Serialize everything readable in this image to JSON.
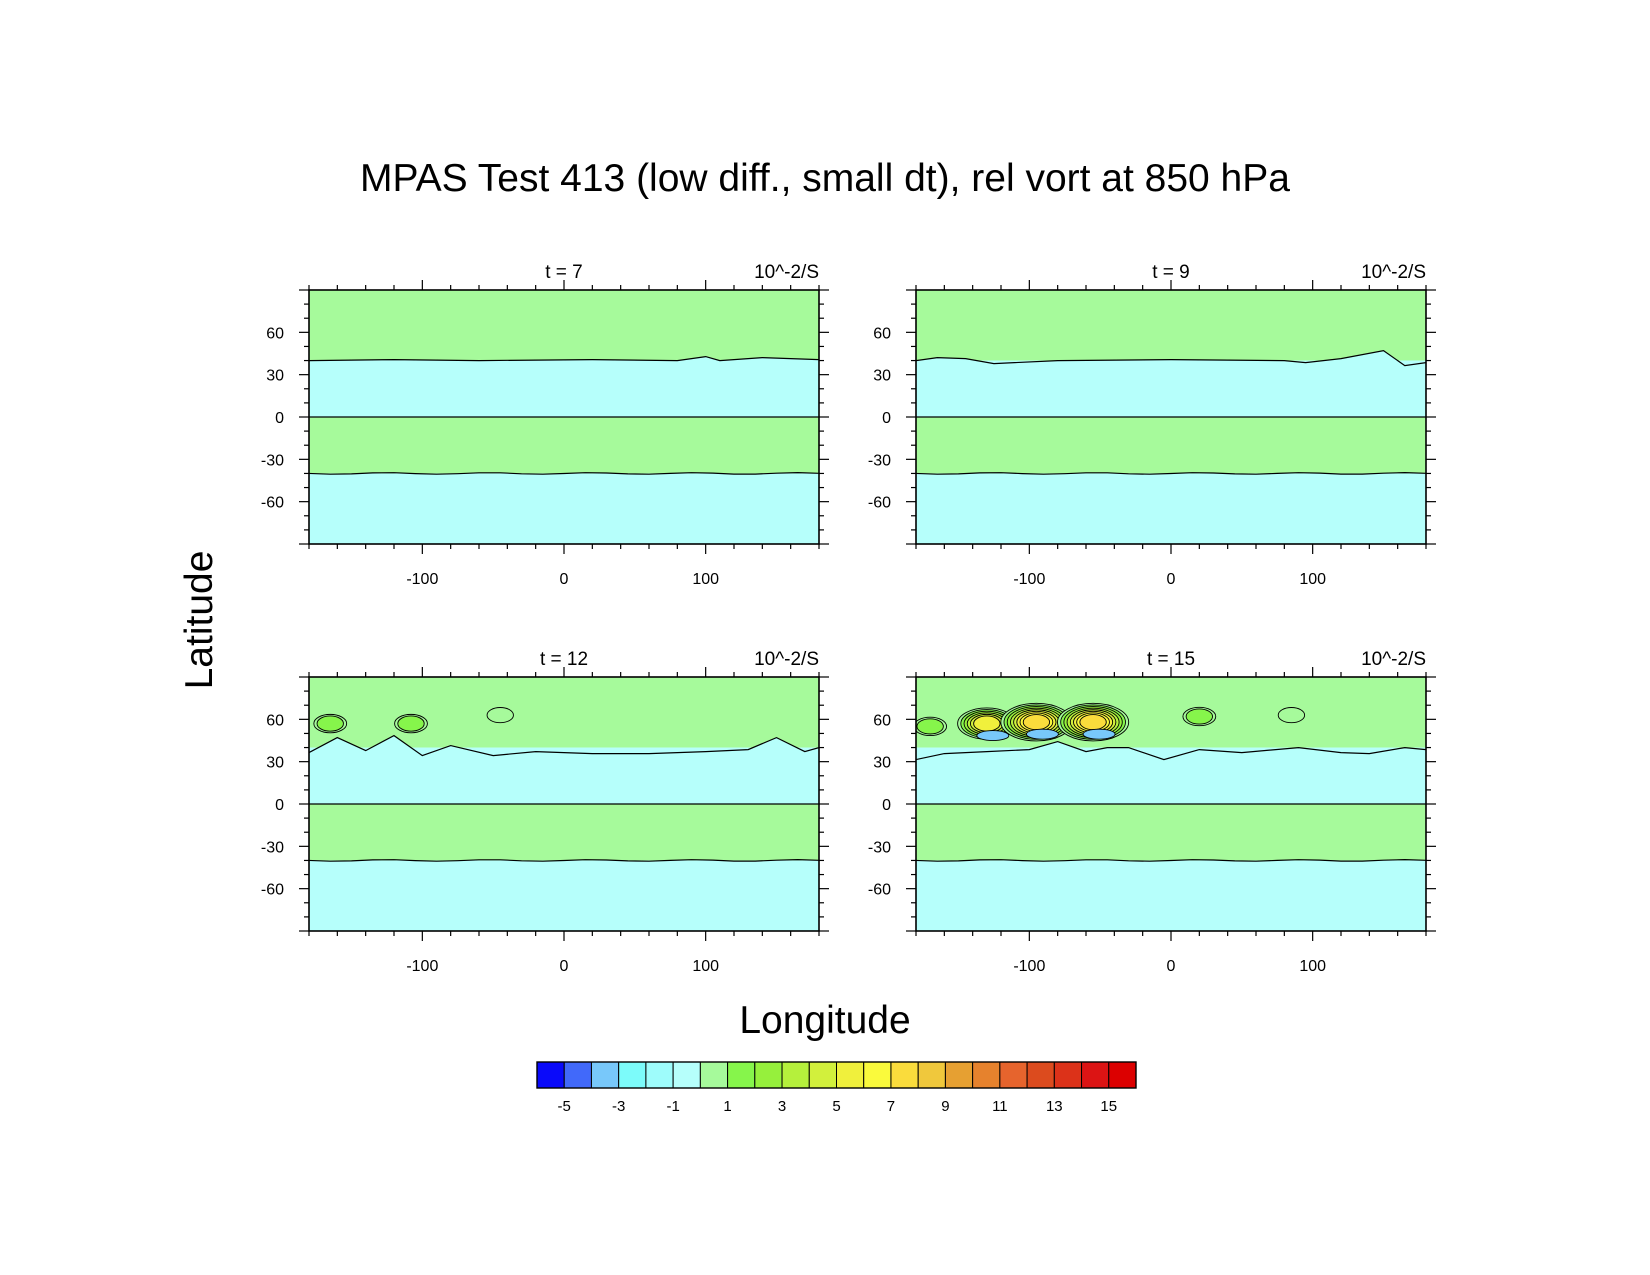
{
  "figure": {
    "title": "MPAS Test 413 (low diff., small dt), rel vort at 850 hPa",
    "xlabel": "Longitude",
    "ylabel": "Latitude"
  },
  "chart_data": [
    {
      "type": "heatmap",
      "panel": "t = 7",
      "units": "10^-2/S",
      "xlim": [
        -180,
        180
      ],
      "ylim": [
        -90,
        90
      ],
      "x_ticks": [
        "-100",
        "0",
        "100"
      ],
      "y_ticks": [
        "60",
        "30",
        "0",
        "-30",
        "-60"
      ],
      "bands": [
        {
          "from": 90,
          "to": 40,
          "level": "1",
          "color": "#a6fa9b"
        },
        {
          "from": 40,
          "to": 0,
          "level": "-1",
          "color": "#b6fffb"
        },
        {
          "from": 0,
          "to": -40,
          "level": "1",
          "color": "#a6fa9b"
        },
        {
          "from": -40,
          "to": -90,
          "level": "-1",
          "color": "#b6fffb"
        }
      ],
      "contour_lat": [
        40,
        0,
        -40
      ],
      "eddies": []
    },
    {
      "type": "heatmap",
      "panel": "t = 9",
      "units": "10^-2/S",
      "xlim": [
        -180,
        180
      ],
      "ylim": [
        -90,
        90
      ],
      "x_ticks": [
        "-100",
        "0",
        "100"
      ],
      "y_ticks": [
        "60",
        "30",
        "0",
        "-30",
        "-60"
      ],
      "bands": [
        {
          "from": 90,
          "to": 40,
          "level": "1",
          "color": "#a6fa9b"
        },
        {
          "from": 40,
          "to": 0,
          "level": "-1",
          "color": "#b6fffb"
        },
        {
          "from": 0,
          "to": -40,
          "level": "1",
          "color": "#a6fa9b"
        },
        {
          "from": -40,
          "to": -90,
          "level": "-1",
          "color": "#b6fffb"
        }
      ],
      "contour_lat": [
        40,
        0,
        -40
      ],
      "eddies": []
    },
    {
      "type": "heatmap",
      "panel": "t = 12",
      "units": "10^-2/S",
      "xlim": [
        -180,
        180
      ],
      "ylim": [
        -90,
        90
      ],
      "x_ticks": [
        "-100",
        "0",
        "100"
      ],
      "y_ticks": [
        "60",
        "30",
        "0",
        "-30",
        "-60"
      ],
      "bands": [
        {
          "from": 90,
          "to": 40,
          "level": "1",
          "color": "#a6fa9b"
        },
        {
          "from": 40,
          "to": 0,
          "level": "-1",
          "color": "#b6fffb"
        },
        {
          "from": 0,
          "to": -40,
          "level": "1",
          "color": "#a6fa9b"
        },
        {
          "from": -40,
          "to": -90,
          "level": "-1",
          "color": "#b6fffb"
        }
      ],
      "contour_lat": [
        40,
        0,
        -40
      ],
      "eddies": [
        {
          "lon": -165,
          "lat": 57,
          "level": "3"
        },
        {
          "lon": -108,
          "lat": 57,
          "level": "3"
        },
        {
          "lon": -45,
          "lat": 63,
          "level": "1"
        }
      ]
    },
    {
      "type": "heatmap",
      "panel": "t = 15",
      "units": "10^-2/S",
      "xlim": [
        -180,
        180
      ],
      "ylim": [
        -90,
        90
      ],
      "x_ticks": [
        "-100",
        "0",
        "100"
      ],
      "y_ticks": [
        "60",
        "30",
        "0",
        "-30",
        "-60"
      ],
      "bands": [
        {
          "from": 90,
          "to": 40,
          "level": "1",
          "color": "#a6fa9b"
        },
        {
          "from": 40,
          "to": 0,
          "level": "-1",
          "color": "#b6fffb"
        },
        {
          "from": 0,
          "to": -40,
          "level": "1",
          "color": "#a6fa9b"
        },
        {
          "from": -40,
          "to": -90,
          "level": "-1",
          "color": "#b6fffb"
        }
      ],
      "contour_lat": [
        40,
        0,
        -40
      ],
      "eddies": [
        {
          "lon": -170,
          "lat": 55,
          "level": "3"
        },
        {
          "lon": -130,
          "lat": 57,
          "level": "11"
        },
        {
          "lon": -95,
          "lat": 58,
          "level": "15"
        },
        {
          "lon": -55,
          "lat": 58,
          "level": "15"
        },
        {
          "lon": 20,
          "lat": 62,
          "level": "3"
        },
        {
          "lon": 85,
          "lat": 63,
          "level": "1"
        }
      ]
    }
  ],
  "colorbar": {
    "colors": [
      "#0a0afa",
      "#4169fa",
      "#78c8fa",
      "#7cfbfa",
      "#9efcfb",
      "#b6fffb",
      "#a6fa9b",
      "#86f54b",
      "#96f03c",
      "#b5f03c",
      "#d2f03c",
      "#f0f03c",
      "#fafa3c",
      "#fadc3c",
      "#f0c83c",
      "#e6a032",
      "#e6822d",
      "#e6642d",
      "#dc4b1e",
      "#dc3219",
      "#dc1414",
      "#dc0000"
    ],
    "labels": [
      "-5",
      "-3",
      "-1",
      "1",
      "3",
      "5",
      "7",
      "9",
      "11",
      "13",
      "15"
    ]
  }
}
